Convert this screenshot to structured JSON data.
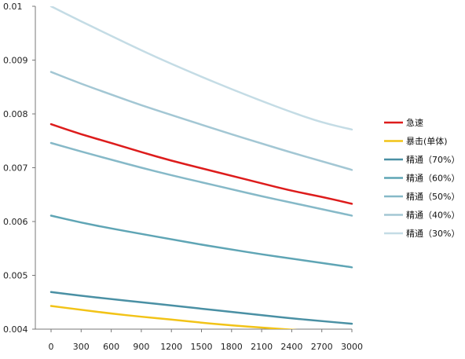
{
  "chart_data": {
    "type": "line",
    "title": "",
    "xlabel": "",
    "ylabel": "",
    "x": [
      0,
      300,
      600,
      900,
      1200,
      1500,
      1800,
      2100,
      2400,
      2700,
      3000
    ],
    "x_tick_labels": [
      "0",
      "300",
      "600",
      "900",
      "1200",
      "1500",
      "1800",
      "2100",
      "2400",
      "2700",
      "3000"
    ],
    "xlim": [
      0,
      3000
    ],
    "ylim": [
      0.004,
      0.01
    ],
    "y_ticks": [
      0.004,
      0.005,
      0.006,
      0.007,
      0.008,
      0.009,
      0.01
    ],
    "y_tick_labels": [
      "0.004",
      "0.005",
      "0.006",
      "0.007",
      "0.008",
      "0.009",
      "0.01"
    ],
    "grid": false,
    "legend_position": "right",
    "series": [
      {
        "name": "急速",
        "color": "#dd1c1c",
        "values": [
          0.00781,
          0.00762,
          0.00746,
          0.00729,
          0.00713,
          0.00699,
          0.00685,
          0.00671,
          0.00657,
          0.00646,
          0.00633
        ]
      },
      {
        "name": "暴击(单体)",
        "color": "#f2c317",
        "values": [
          0.00443,
          0.00436,
          0.00429,
          0.00423,
          0.00418,
          0.00412,
          0.00407,
          0.00403,
          0.00399,
          0.00395,
          0.00391
        ]
      },
      {
        "name": "精通（70%）",
        "color": "#4a90a4",
        "values": [
          0.00469,
          0.00462,
          0.00456,
          0.0045,
          0.00444,
          0.00438,
          0.00432,
          0.00426,
          0.0042,
          0.00415,
          0.0041
        ]
      },
      {
        "name": "精通（60%）",
        "color": "#5fa5b5",
        "values": [
          0.00611,
          0.00598,
          0.00587,
          0.00577,
          0.00567,
          0.00557,
          0.00548,
          0.00539,
          0.00531,
          0.00523,
          0.00515
        ]
      },
      {
        "name": "精通（50%）",
        "color": "#86b9c8",
        "values": [
          0.00746,
          0.0073,
          0.00715,
          0.007,
          0.00686,
          0.00673,
          0.0066,
          0.00647,
          0.00635,
          0.00623,
          0.00611
        ]
      },
      {
        "name": "精通（40%）",
        "color": "#a3c7d4",
        "values": [
          0.00878,
          0.00856,
          0.00836,
          0.00816,
          0.00798,
          0.0078,
          0.00762,
          0.00745,
          0.00728,
          0.00712,
          0.00696
        ]
      },
      {
        "name": "精通（30%）",
        "color": "#c4dce5",
        "values": [
          0.01,
          0.00972,
          0.00945,
          0.00918,
          0.00893,
          0.00869,
          0.00846,
          0.00824,
          0.00803,
          0.00784,
          0.00771
        ]
      }
    ]
  }
}
